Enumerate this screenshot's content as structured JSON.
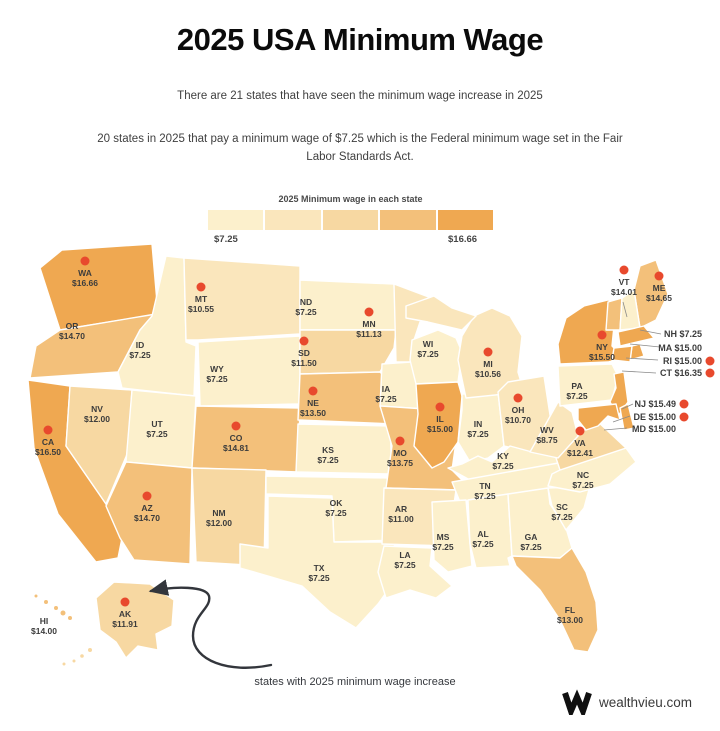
{
  "header": {
    "title": "2025 USA Minimum Wage",
    "subtitle1": "There are 21 states that have seen the minimum wage increase in 2025",
    "subtitle2": "20 states in 2025 that pay a minimum wage of $7.25 which is the Federal minimum wage set in the Fair Labor Standards Act."
  },
  "legend": {
    "title": "2025 Minimum wage in each state",
    "min_label": "$7.25",
    "max_label": "$16.66",
    "colors": [
      "#FCF0CC",
      "#FAE6BC",
      "#F7D8A2",
      "#F3C07A",
      "#EFA851"
    ]
  },
  "accent": {
    "dot_color": "#E8492D",
    "arrow_color": "#33363C"
  },
  "annotation": {
    "text": "states with 2025 minimum wage increase"
  },
  "footer": {
    "brand": "wealthvieu.com"
  },
  "chart_data": {
    "type": "choropleth_map",
    "region": "USA states",
    "title": "2025 USA Minimum Wage",
    "unit": "USD per hour",
    "value_range": [
      7.25,
      16.66
    ],
    "increase_marker": "red dot marks state with 2025 minimum wage increase",
    "states": [
      {
        "abbr": "WA",
        "wage": 16.66,
        "increase": true
      },
      {
        "abbr": "OR",
        "wage": 14.7,
        "increase": false
      },
      {
        "abbr": "CA",
        "wage": 16.5,
        "increase": true
      },
      {
        "abbr": "NV",
        "wage": 12.0,
        "increase": false
      },
      {
        "abbr": "ID",
        "wage": 7.25,
        "increase": false
      },
      {
        "abbr": "UT",
        "wage": 7.25,
        "increase": false
      },
      {
        "abbr": "AZ",
        "wage": 14.7,
        "increase": true
      },
      {
        "abbr": "MT",
        "wage": 10.55,
        "increase": true
      },
      {
        "abbr": "WY",
        "wage": 7.25,
        "increase": false
      },
      {
        "abbr": "CO",
        "wage": 14.81,
        "increase": true
      },
      {
        "abbr": "NM",
        "wage": 12.0,
        "increase": false
      },
      {
        "abbr": "ND",
        "wage": 7.25,
        "increase": false
      },
      {
        "abbr": "SD",
        "wage": 11.5,
        "increase": true
      },
      {
        "abbr": "NE",
        "wage": 13.5,
        "increase": true
      },
      {
        "abbr": "KS",
        "wage": 7.25,
        "increase": false
      },
      {
        "abbr": "OK",
        "wage": 7.25,
        "increase": false
      },
      {
        "abbr": "TX",
        "wage": 7.25,
        "increase": false
      },
      {
        "abbr": "MN",
        "wage": 11.13,
        "increase": true
      },
      {
        "abbr": "IA",
        "wage": 7.25,
        "increase": false
      },
      {
        "abbr": "MO",
        "wage": 13.75,
        "increase": true
      },
      {
        "abbr": "AR",
        "wage": 11.0,
        "increase": false
      },
      {
        "abbr": "LA",
        "wage": 7.25,
        "increase": false
      },
      {
        "abbr": "WI",
        "wage": 7.25,
        "increase": false
      },
      {
        "abbr": "IL",
        "wage": 15.0,
        "increase": true
      },
      {
        "abbr": "IN",
        "wage": 7.25,
        "increase": false
      },
      {
        "abbr": "MI",
        "wage": 10.56,
        "increase": true
      },
      {
        "abbr": "OH",
        "wage": 10.7,
        "increase": true
      },
      {
        "abbr": "KY",
        "wage": 7.25,
        "increase": false
      },
      {
        "abbr": "TN",
        "wage": 7.25,
        "increase": false
      },
      {
        "abbr": "MS",
        "wage": 7.25,
        "increase": false
      },
      {
        "abbr": "AL",
        "wage": 7.25,
        "increase": false
      },
      {
        "abbr": "GA",
        "wage": 7.25,
        "increase": false
      },
      {
        "abbr": "FL",
        "wage": 13.0,
        "increase": false
      },
      {
        "abbr": "SC",
        "wage": 7.25,
        "increase": false
      },
      {
        "abbr": "NC",
        "wage": 7.25,
        "increase": false
      },
      {
        "abbr": "VA",
        "wage": 12.41,
        "increase": true
      },
      {
        "abbr": "WV",
        "wage": 8.75,
        "increase": false
      },
      {
        "abbr": "PA",
        "wage": 7.25,
        "increase": false
      },
      {
        "abbr": "NY",
        "wage": 15.5,
        "increase": true
      },
      {
        "abbr": "VT",
        "wage": 14.01,
        "increase": true
      },
      {
        "abbr": "ME",
        "wage": 14.65,
        "increase": true
      },
      {
        "abbr": "NH",
        "wage": 7.25,
        "increase": false
      },
      {
        "abbr": "MA",
        "wage": 15.0,
        "increase": false
      },
      {
        "abbr": "RI",
        "wage": 15.0,
        "increase": true
      },
      {
        "abbr": "CT",
        "wage": 16.35,
        "increase": true
      },
      {
        "abbr": "NJ",
        "wage": 15.49,
        "increase": true
      },
      {
        "abbr": "DE",
        "wage": 15.0,
        "increase": true
      },
      {
        "abbr": "MD",
        "wage": 15.0,
        "increase": false
      },
      {
        "abbr": "AK",
        "wage": 11.91,
        "increase": true
      },
      {
        "abbr": "HI",
        "wage": 14.0,
        "increase": false
      }
    ]
  }
}
